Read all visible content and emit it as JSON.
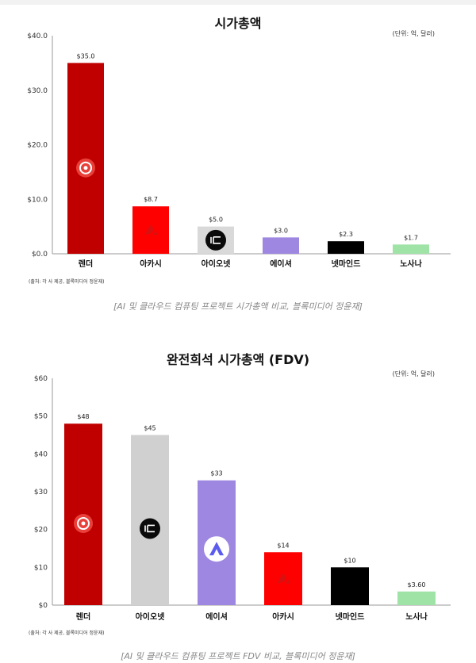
{
  "chart_data": [
    {
      "type": "bar",
      "title": "시가총액",
      "unit_note": "(단위: 억, 달러)",
      "categories": [
        "렌더",
        "아카시",
        "아이오넷",
        "에이셔",
        "넷마인드",
        "노사나"
      ],
      "values": [
        35.0,
        8.7,
        5.0,
        3.0,
        2.3,
        1.7
      ],
      "value_labels": [
        "$35.0",
        "$8.7",
        "$5.0",
        "$3.0",
        "$2.3",
        "$1.7"
      ],
      "colors": [
        "#c00000",
        "#ff0000",
        "#d9d9d9",
        "#9e87e0",
        "#000000",
        "#9fe3a6"
      ],
      "logos": [
        "render-logo",
        "akash-logo",
        "ionet-logo",
        "none",
        "none",
        "none"
      ],
      "yticks": [
        0,
        10,
        20,
        30,
        40
      ],
      "ytick_labels": [
        "$0.0",
        "$10.0",
        "$20.0",
        "$30.0",
        "$40.0"
      ],
      "ylim": [
        0,
        40
      ],
      "grid": false,
      "source_note": "(출처: 각 사 제공, 블록미디어 정윤재)",
      "caption": "[AI 및 클라우드 컴퓨팅 프로젝트 시가총액 비교, 블록미디어 정윤재]"
    },
    {
      "type": "bar",
      "title": "완전희석 시가총액 (FDV)",
      "unit_note": "(단위: 억, 달러)",
      "categories": [
        "렌더",
        "아이오넷",
        "에이셔",
        "아카시",
        "넷마인드",
        "노사나"
      ],
      "values": [
        48,
        45,
        33,
        14,
        10,
        3.6
      ],
      "value_labels": [
        "$48",
        "$45",
        "$33",
        "$14",
        "$10",
        "$3.60"
      ],
      "colors": [
        "#c00000",
        "#d0d0d0",
        "#9e87e0",
        "#ff0000",
        "#000000",
        "#9fe3a6"
      ],
      "logos": [
        "render-logo",
        "ionet-logo",
        "aethir-logo",
        "akash-logo",
        "none",
        "none"
      ],
      "yticks": [
        0,
        10,
        20,
        30,
        40,
        50,
        60
      ],
      "ytick_labels": [
        "$0",
        "$10",
        "$20",
        "$30",
        "$40",
        "$50",
        "$60"
      ],
      "ylim": [
        0,
        60
      ],
      "grid": false,
      "source_note": "(출처: 각 사 제공, 블록미디어 정윤재)",
      "caption": "[AI 및 클라우드 컴퓨팅 프로젝트 FDV 비교, 블록미디어 정윤재]"
    }
  ]
}
